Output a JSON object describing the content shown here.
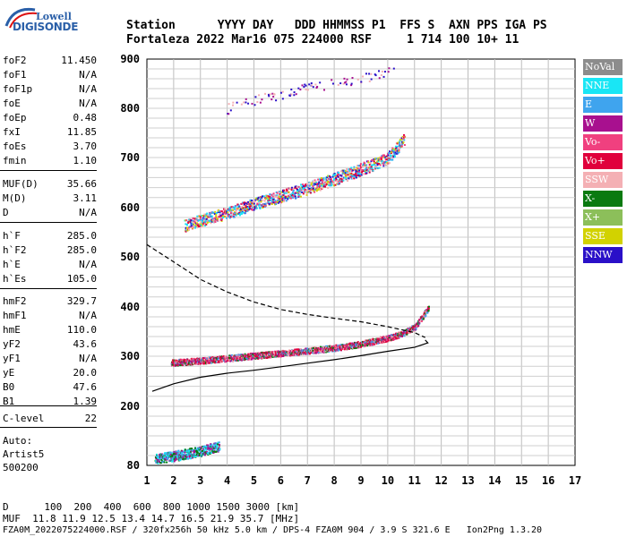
{
  "logo": {
    "line1": "Lowell",
    "line2": "DIGISONDE"
  },
  "header": {
    "row1": "Station      YYYY DAY   DDD HHMMSS P1  FFS S  AXN PPS IGA PS",
    "row2": "Fortaleza 2022 Mar16 075 224000 RSF     1 714 100 10+ 11"
  },
  "params": [
    {
      "name": "foF2",
      "value": "11.450"
    },
    {
      "name": "foF1",
      "value": "N/A"
    },
    {
      "name": "foF1p",
      "value": "N/A"
    },
    {
      "name": "foE",
      "value": "N/A"
    },
    {
      "name": "foEp",
      "value": "0.48"
    },
    {
      "name": "fxI",
      "value": "11.85"
    },
    {
      "name": "foEs",
      "value": "3.70"
    },
    {
      "name": "fmin",
      "value": "1.10"
    },
    {
      "name": "MUF(D)",
      "value": "35.66"
    },
    {
      "name": "M(D)",
      "value": "3.11"
    },
    {
      "name": "D",
      "value": "N/A"
    },
    {
      "name": "h`F",
      "value": "285.0"
    },
    {
      "name": "h`F2",
      "value": "285.0"
    },
    {
      "name": "h`E",
      "value": "N/A"
    },
    {
      "name": "h`Es",
      "value": "105.0"
    },
    {
      "name": "hmF2",
      "value": "329.7"
    },
    {
      "name": "hmF1",
      "value": "N/A"
    },
    {
      "name": "hmE",
      "value": "110.0"
    },
    {
      "name": "yF2",
      "value": "43.6"
    },
    {
      "name": "yF1",
      "value": "N/A"
    },
    {
      "name": "yE",
      "value": "20.0"
    },
    {
      "name": "B0",
      "value": "47.6"
    },
    {
      "name": "B1",
      "value": "1.39"
    },
    {
      "name": "C-level",
      "value": "22"
    }
  ],
  "autoscaling": {
    "line1": "Auto:",
    "line2": "Artist5",
    "line3": "500200"
  },
  "legend": [
    {
      "label": "NoVal",
      "color": "#8c8c8c"
    },
    {
      "label": "NNE",
      "color": "#19e6f5"
    },
    {
      "label": "E",
      "color": "#3fa4ee"
    },
    {
      "label": "W",
      "color": "#a8108f"
    },
    {
      "label": "Vo-",
      "color": "#f0407f"
    },
    {
      "label": "Vo+",
      "color": "#e0003c"
    },
    {
      "label": "SSW",
      "color": "#f4b0b4"
    },
    {
      "label": "X-",
      "color": "#0a7a10"
    },
    {
      "label": "X+",
      "color": "#8cbf5a"
    },
    {
      "label": "SSE",
      "color": "#d2d200"
    },
    {
      "label": "NNW",
      "color": "#2a10c8"
    }
  ],
  "chart_data": {
    "type": "scatter",
    "x_ticks": [
      "1",
      "2",
      "3",
      "4",
      "5",
      "6",
      "7",
      "8",
      "9",
      "10",
      "11",
      "12",
      "13",
      "14",
      "15",
      "16",
      "17"
    ],
    "y_ticks": [
      "80",
      "200",
      "300",
      "400",
      "500",
      "600",
      "700",
      "800",
      "900"
    ],
    "xlim": [
      1,
      17
    ],
    "ylim": [
      80,
      900
    ],
    "y_scale": "nonlinear (ionogram virtual height)",
    "grid": true,
    "traces": [
      {
        "name": "O-trace F2",
        "x": [
          1.9,
          3,
          4,
          5,
          6,
          7,
          8,
          9,
          10,
          10.5,
          11,
          11.5
        ],
        "y": [
          288,
          292,
          297,
          302,
          307,
          312,
          318,
          326,
          338,
          346,
          360,
          398
        ]
      },
      {
        "name": "2nd hop F2",
        "x": [
          2.4,
          3,
          4,
          5,
          6,
          7,
          8,
          9,
          10,
          10.6
        ],
        "y": [
          565,
          575,
          590,
          608,
          624,
          640,
          658,
          678,
          700,
          738
        ]
      },
      {
        "name": "3rd hop F2",
        "x": [
          4.0,
          5,
          6,
          7,
          8,
          9,
          10.2
        ],
        "y": [
          800,
          818,
          830,
          842,
          852,
          862,
          878
        ]
      },
      {
        "name": "Es layer",
        "x": [
          1.3,
          2.0,
          3.0,
          3.7
        ],
        "y": [
          95,
          100,
          110,
          120
        ]
      }
    ],
    "profile_solid": {
      "x": [
        1.2,
        2,
        3,
        4,
        5,
        6,
        7,
        8,
        9,
        10,
        11,
        11.5,
        11.4
      ],
      "y": [
        230,
        245,
        258,
        266,
        272,
        279,
        286,
        293,
        301,
        310,
        318,
        327,
        333
      ]
    },
    "profile_dashed": {
      "x": [
        1.0,
        2,
        3,
        4,
        5,
        6,
        7,
        8,
        9,
        10,
        11,
        11.4
      ],
      "y": [
        525,
        490,
        455,
        430,
        410,
        395,
        385,
        377,
        370,
        360,
        348,
        338
      ]
    }
  },
  "bottom": {
    "line1": "D      100  200  400  600  800 1000 1500 3000 [km]",
    "line2": "MUF  11.8 11.9 12.5 13.4 14.7 16.5 21.9 35.7 [MHz]",
    "line3": "FZA0M_2022075224000.RSF / 320fx256h 50 kHz 5.0 km / DPS-4 FZA0M 904 / 3.9 S 321.6 E   Ion2Png 1.3.20"
  }
}
